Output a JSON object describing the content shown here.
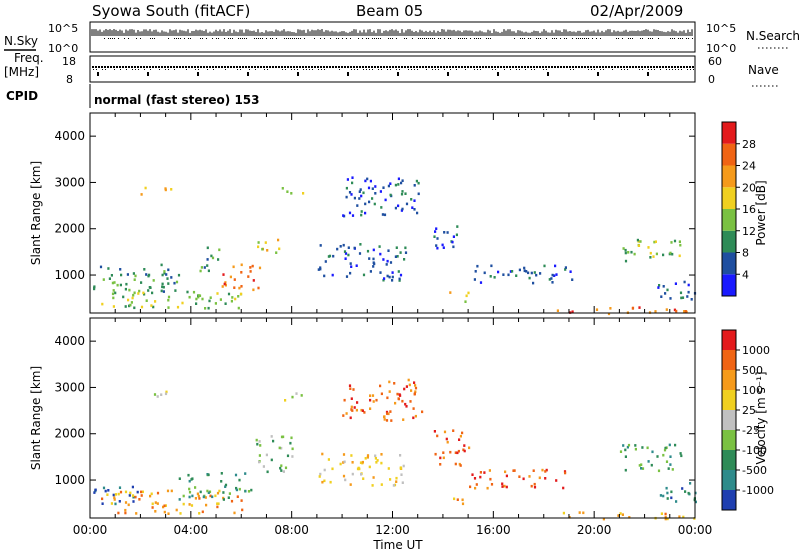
{
  "header": {
    "station": "Syowa South (fitACF)",
    "beam": "Beam 05",
    "date": "02/Apr/2009"
  },
  "strip_panels": {
    "nsky_label": "N.Sky",
    "nsky_ticks": [
      "10^5",
      "10^0"
    ],
    "nsearch_label": "N.Search",
    "nsearch_ticks": [
      "10^5",
      "10^0"
    ],
    "freq_label": "Freq.",
    "freq_unit": "[MHz]",
    "freq_ticks": [
      "18",
      "8"
    ],
    "nave_label": "Nave",
    "nave_ticks": [
      "60",
      "0"
    ],
    "cpid_label": "CPID",
    "cpid_value": "normal (fast stereo) 153"
  },
  "chart_data": [
    {
      "type": "heatmap",
      "name": "power",
      "ylabel": "Slant Range [km]",
      "yticks": [
        "4000",
        "3000",
        "2000",
        "1000"
      ],
      "ylim": [
        180,
        4500
      ],
      "xlim": [
        0,
        24
      ],
      "colorbar": {
        "label": "Power [dB]",
        "ticks": [
          "28",
          "24",
          "20",
          "16",
          "12",
          "8",
          "4"
        ],
        "colors": [
          "#1a1aff",
          "#1f4fa0",
          "#2e8b57",
          "#7ac142",
          "#f0d020",
          "#f59a1b",
          "#f06414",
          "#e31a1c"
        ]
      },
      "regions": [
        {
          "t": [
            0.1,
            3.5
          ],
          "r": [
            550,
            1250
          ],
          "c": 2
        },
        {
          "t": [
            0.2,
            6.0
          ],
          "r": [
            300,
            700
          ],
          "c": 3
        },
        {
          "t": [
            2.0,
            3.2
          ],
          "r": [
            2750,
            2950
          ],
          "c": 4
        },
        {
          "t": [
            4.3,
            5.1
          ],
          "r": [
            1100,
            1700
          ],
          "c": 2
        },
        {
          "t": [
            5.2,
            6.8
          ],
          "r": [
            700,
            1300
          ],
          "c": 6
        },
        {
          "t": [
            6.5,
            7.5
          ],
          "r": [
            1400,
            1800
          ],
          "c": 4
        },
        {
          "t": [
            7.6,
            8.5
          ],
          "r": [
            2750,
            2950
          ],
          "c": 3
        },
        {
          "t": [
            9.0,
            12.5
          ],
          "r": [
            900,
            1700
          ],
          "c": 1
        },
        {
          "t": [
            10.0,
            13.2
          ],
          "r": [
            2300,
            3200
          ],
          "c": 1
        },
        {
          "t": [
            13.6,
            14.8
          ],
          "r": [
            1500,
            2100
          ],
          "c": 1
        },
        {
          "t": [
            14.0,
            15.0
          ],
          "r": [
            450,
            650
          ],
          "c": 4
        },
        {
          "t": [
            15.0,
            19.2
          ],
          "r": [
            850,
            1250
          ],
          "c": 1
        },
        {
          "t": [
            18.5,
            24.0
          ],
          "r": [
            180,
            330
          ],
          "c": 6
        },
        {
          "t": [
            21.0,
            23.5
          ],
          "r": [
            1300,
            1800
          ],
          "c": 3
        },
        {
          "t": [
            22.5,
            24.0
          ],
          "r": [
            500,
            1000
          ],
          "c": 1
        }
      ]
    },
    {
      "type": "heatmap",
      "name": "velocity",
      "ylabel": "Slant Range [km]",
      "yticks": [
        "4000",
        "3000",
        "2000",
        "1000"
      ],
      "ylim": [
        180,
        4500
      ],
      "xlim": [
        0,
        24
      ],
      "xticks": [
        "00:00",
        "04:00",
        "08:00",
        "12:00",
        "16:00",
        "20:00",
        "00:00"
      ],
      "xlabel": "Time UT",
      "colorbar": {
        "label": "Velocity [m s⁻¹]",
        "ticks": [
          "1000",
          "500",
          "100",
          "25",
          "-25",
          "-100",
          "-500",
          "-1000"
        ],
        "colors": [
          "#1f3fb0",
          "#2e8b8b",
          "#2e8b57",
          "#7ac142",
          "#c0c0c0",
          "#f0d020",
          "#f59a1b",
          "#f06414",
          "#e31a1c"
        ]
      },
      "regions": [
        {
          "t": [
            0.1,
            2.0
          ],
          "r": [
            500,
            900
          ],
          "c": 0
        },
        {
          "t": [
            0.3,
            6.0
          ],
          "r": [
            300,
            800
          ],
          "c": 6
        },
        {
          "t": [
            2.0,
            3.2
          ],
          "r": [
            2750,
            2950
          ],
          "c": 4
        },
        {
          "t": [
            3.5,
            6.5
          ],
          "r": [
            600,
            1200
          ],
          "c": 2
        },
        {
          "t": [
            6.5,
            8.0
          ],
          "r": [
            1200,
            2000
          ],
          "c": 3
        },
        {
          "t": [
            7.6,
            8.5
          ],
          "r": [
            2750,
            2950
          ],
          "c": 4
        },
        {
          "t": [
            9.0,
            12.5
          ],
          "r": [
            900,
            1600
          ],
          "c": 5
        },
        {
          "t": [
            10.0,
            13.2
          ],
          "r": [
            2300,
            3200
          ],
          "c": 7
        },
        {
          "t": [
            13.6,
            15.0
          ],
          "r": [
            1300,
            2100
          ],
          "c": 7
        },
        {
          "t": [
            14.0,
            15.0
          ],
          "r": [
            450,
            650
          ],
          "c": 6
        },
        {
          "t": [
            15.0,
            19.0
          ],
          "r": [
            850,
            1250
          ],
          "c": 7
        },
        {
          "t": [
            18.5,
            24.0
          ],
          "r": [
            180,
            330
          ],
          "c": 6
        },
        {
          "t": [
            21.0,
            23.5
          ],
          "r": [
            1200,
            1800
          ],
          "c": 2
        },
        {
          "t": [
            22.5,
            24.0
          ],
          "r": [
            500,
            1000
          ],
          "c": 1
        }
      ]
    }
  ]
}
